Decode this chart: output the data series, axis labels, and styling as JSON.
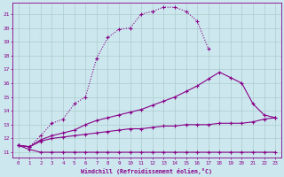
{
  "bg_color": "#cce8ee",
  "grid_color": "#aacccc",
  "line_color": "#880088",
  "xlabel": "Windchill (Refroidissement éolien,°C)",
  "ylabel_ticks": [
    11,
    12,
    13,
    14,
    15,
    16,
    17,
    18,
    19,
    20,
    21
  ],
  "xtick_labels": [
    "0",
    "1",
    "2",
    "3",
    "4",
    "5",
    "6",
    "7",
    "8",
    "9",
    "10",
    "11",
    "12",
    "13",
    "14",
    "15",
    "16",
    "17",
    "18",
    "19",
    "20",
    "21",
    "22",
    "23"
  ],
  "xlim": [
    -0.5,
    23.5
  ],
  "ylim": [
    10.6,
    21.8
  ],
  "lines": [
    {
      "x": [
        0,
        1,
        2,
        3,
        4,
        5,
        6,
        7,
        8,
        9,
        10,
        11,
        12,
        13,
        14,
        15,
        16,
        17
      ],
      "y": [
        11.5,
        11.4,
        12.2,
        13.1,
        13.4,
        14.5,
        15.0,
        17.8,
        19.3,
        19.9,
        20.0,
        21.0,
        21.2,
        21.5,
        21.5,
        21.2,
        20.5,
        18.5
      ],
      "linestyle": "dotted",
      "marker": "+"
    },
    {
      "x": [
        0,
        1,
        2,
        3,
        4,
        5,
        6,
        7,
        8,
        9,
        10,
        11,
        12,
        13,
        14,
        15,
        16,
        17,
        18,
        19,
        20,
        21,
        22,
        23
      ],
      "y": [
        11.5,
        11.4,
        11.9,
        12.2,
        12.4,
        12.6,
        13.0,
        13.3,
        13.5,
        13.7,
        13.9,
        14.1,
        14.4,
        14.7,
        15.0,
        15.4,
        15.8,
        16.3,
        16.8,
        16.4,
        16.0,
        14.5,
        13.7,
        13.5
      ],
      "linestyle": "solid",
      "marker": "+"
    },
    {
      "x": [
        0,
        1,
        2,
        3,
        4,
        5,
        6,
        7,
        8,
        9,
        10,
        11,
        12,
        13,
        14,
        15,
        16,
        17,
        18,
        19,
        20,
        21,
        22,
        23
      ],
      "y": [
        11.5,
        11.4,
        11.8,
        12.0,
        12.1,
        12.2,
        12.3,
        12.4,
        12.5,
        12.6,
        12.7,
        12.7,
        12.8,
        12.9,
        12.9,
        13.0,
        13.0,
        13.0,
        13.1,
        13.1,
        13.1,
        13.2,
        13.4,
        13.5
      ],
      "linestyle": "solid",
      "marker": "+"
    },
    {
      "x": [
        0,
        1,
        2,
        3,
        4,
        5,
        6,
        7,
        8,
        9,
        10,
        11,
        12,
        13,
        14,
        15,
        16,
        17,
        18,
        19,
        20,
        21,
        22,
        23
      ],
      "y": [
        11.5,
        11.2,
        11.0,
        11.0,
        11.0,
        11.0,
        11.0,
        11.0,
        11.0,
        11.0,
        11.0,
        11.0,
        11.0,
        11.0,
        11.0,
        11.0,
        11.0,
        11.0,
        11.0,
        11.0,
        11.0,
        11.0,
        11.0,
        11.0
      ],
      "linestyle": "solid",
      "marker": "+"
    }
  ]
}
